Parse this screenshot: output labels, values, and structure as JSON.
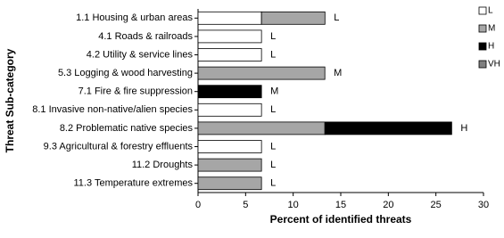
{
  "chart_data": {
    "type": "stacked-barh",
    "y_label": "Threat Sub-category",
    "x_label": "Percent of identified threats",
    "categories": [
      "1.1 Housing & urban areas",
      "4.1 Roads & railroads",
      "4.2 Utility & service lines",
      "5.3 Logging & wood harvesting",
      "7.1 Fire & fire suppression",
      "8.1 Invasive non-native/alien species",
      "8.2 Problematic native species",
      "9.3 Agricultural & forestry effluents",
      "11.2 Droughts",
      "11.3 Temperature extremes"
    ],
    "annotations": [
      "L",
      "L",
      "L",
      "M",
      "M",
      "L",
      "H",
      "L",
      "L",
      "L"
    ],
    "series": [
      {
        "name": "L",
        "color": "#ffffff",
        "values": [
          6.67,
          6.67,
          6.67,
          null,
          null,
          6.67,
          null,
          6.67,
          null,
          null
        ]
      },
      {
        "name": "M",
        "color": "#a6a6a6",
        "values": [
          6.67,
          null,
          null,
          13.33,
          null,
          null,
          13.33,
          null,
          6.67,
          6.67
        ]
      },
      {
        "name": "H",
        "color": "#000000",
        "values": [
          null,
          null,
          null,
          null,
          6.67,
          null,
          13.33,
          null,
          null,
          null
        ]
      },
      {
        "name": "VH",
        "color": "#7f7f7f",
        "values": [
          null,
          null,
          null,
          null,
          null,
          null,
          null,
          null,
          null,
          null
        ]
      }
    ],
    "xlim": [
      0,
      30
    ],
    "xticks": [
      0,
      5,
      10,
      15,
      20,
      25,
      30
    ],
    "legend": "top-right"
  }
}
